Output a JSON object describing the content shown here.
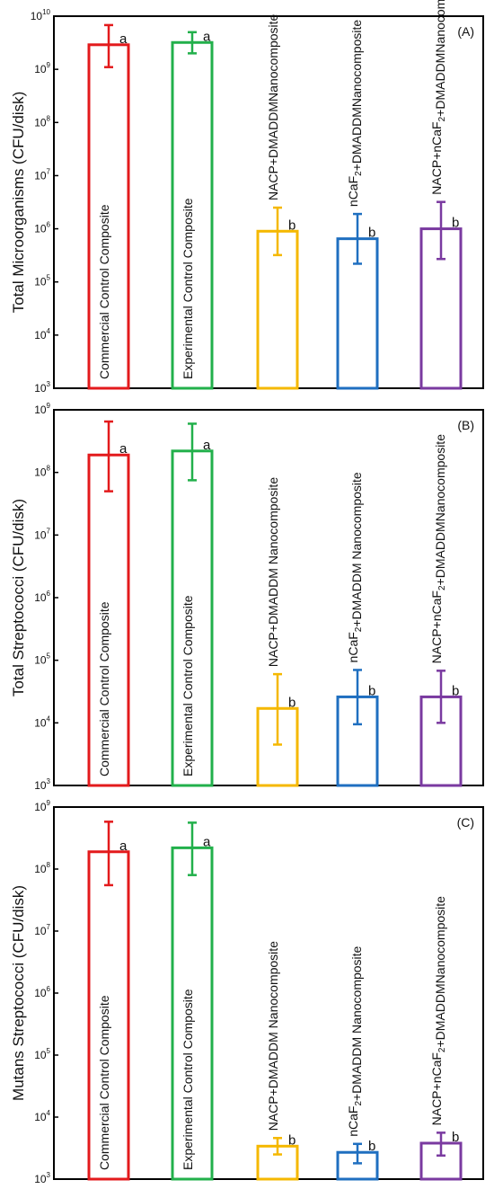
{
  "chart_data": [
    {
      "type": "bar",
      "panel_label": "(A)",
      "ylabel": "Total Microorganisms (CFU/disk)",
      "yscale": "log",
      "ylim": [
        1000,
        10000000000
      ],
      "yticks": [
        {
          "base": "10",
          "exp": "3"
        },
        {
          "base": "10",
          "exp": "4"
        },
        {
          "base": "10",
          "exp": "5"
        },
        {
          "base": "10",
          "exp": "6"
        },
        {
          "base": "10",
          "exp": "7"
        },
        {
          "base": "10",
          "exp": "8"
        },
        {
          "base": "10",
          "exp": "9"
        },
        {
          "base": "10",
          "exp": "10"
        }
      ],
      "bars": [
        {
          "lines": [
            [
              {
                "t": "Commercial Control Composite"
              }
            ]
          ],
          "value": 2900000000,
          "err_low": 1100000000,
          "err_high": 6800000000,
          "group": "a",
          "color": "#e31a1c",
          "label_inside": true
        },
        {
          "lines": [
            [
              {
                "t": "Experimental Control Composite"
              }
            ]
          ],
          "value": 3200000000,
          "err_low": 2000000000,
          "err_high": 5000000000,
          "group": "a",
          "color": "#22b04b",
          "label_inside": true
        },
        {
          "lines": [
            [
              {
                "t": "NACP+DMADDM"
              }
            ],
            [
              {
                "t": "Nanocomposite"
              }
            ]
          ],
          "value": 900000,
          "err_low": 320000,
          "err_high": 2500000,
          "group": "b",
          "color": "#f5b800",
          "label_inside": false
        },
        {
          "lines": [
            [
              {
                "t": "nCaF"
              },
              {
                "t": "2",
                "sub": true
              },
              {
                "t": "+DMADDM"
              }
            ],
            [
              {
                "t": "Nanocomposite"
              }
            ]
          ],
          "value": 650000,
          "err_low": 220000,
          "err_high": 1900000,
          "group": "b",
          "color": "#1f6fc0",
          "label_inside": false
        },
        {
          "lines": [
            [
              {
                "t": "NACP+nCaF"
              },
              {
                "t": "2",
                "sub": true
              },
              {
                "t": "+DMADDM"
              }
            ],
            [
              {
                "t": "Nanocomposite"
              }
            ]
          ],
          "value": 1000000,
          "err_low": 270000,
          "err_high": 3200000,
          "group": "b",
          "color": "#7a3aa0",
          "label_inside": false
        }
      ]
    },
    {
      "type": "bar",
      "panel_label": "(B)",
      "ylabel": "Total Streptococci (CFU/disk)",
      "yscale": "log",
      "ylim": [
        1000,
        1000000000
      ],
      "yticks": [
        {
          "base": "10",
          "exp": "3"
        },
        {
          "base": "10",
          "exp": "4"
        },
        {
          "base": "10",
          "exp": "5"
        },
        {
          "base": "10",
          "exp": "6"
        },
        {
          "base": "10",
          "exp": "7"
        },
        {
          "base": "10",
          "exp": "8"
        },
        {
          "base": "10",
          "exp": "9"
        }
      ],
      "bars": [
        {
          "lines": [
            [
              {
                "t": "Commercial Control Composite"
              }
            ]
          ],
          "value": 190000000,
          "err_low": 50000000,
          "err_high": 650000000,
          "group": "a",
          "color": "#e31a1c",
          "label_inside": true
        },
        {
          "lines": [
            [
              {
                "t": "Experimental Control Composite"
              }
            ]
          ],
          "value": 220000000,
          "err_low": 75000000,
          "err_high": 600000000,
          "group": "a",
          "color": "#22b04b",
          "label_inside": true
        },
        {
          "lines": [
            [
              {
                "t": "NACP+DMADDM Nanocomposite"
              }
            ]
          ],
          "value": 17000,
          "err_low": 4500,
          "err_high": 60000,
          "group": "b",
          "color": "#f5b800",
          "label_inside": false
        },
        {
          "lines": [
            [
              {
                "t": "nCaF"
              },
              {
                "t": "2",
                "sub": true
              },
              {
                "t": "+DMADDM Nanocomposite"
              }
            ]
          ],
          "value": 26000,
          "err_low": 9500,
          "err_high": 70000,
          "group": "b",
          "color": "#1f6fc0",
          "label_inside": false
        },
        {
          "lines": [
            [
              {
                "t": "NACP+nCaF"
              },
              {
                "t": "2",
                "sub": true
              },
              {
                "t": "+DMADDM"
              }
            ],
            [
              {
                "t": "Nanocomposite"
              }
            ]
          ],
          "value": 26000,
          "err_low": 10000,
          "err_high": 68000,
          "group": "b",
          "color": "#7a3aa0",
          "label_inside": false
        }
      ]
    },
    {
      "type": "bar",
      "panel_label": "(C)",
      "ylabel": "Mutans Streptococci (CFU/disk)",
      "yscale": "log",
      "ylim": [
        1000,
        1000000000
      ],
      "yticks": [
        {
          "base": "10",
          "exp": "3"
        },
        {
          "base": "10",
          "exp": "4"
        },
        {
          "base": "10",
          "exp": "5"
        },
        {
          "base": "10",
          "exp": "6"
        },
        {
          "base": "10",
          "exp": "7"
        },
        {
          "base": "10",
          "exp": "8"
        },
        {
          "base": "10",
          "exp": "9"
        }
      ],
      "bars": [
        {
          "lines": [
            [
              {
                "t": "Commercial Control Composite"
              }
            ]
          ],
          "value": 190000000,
          "err_low": 55000000,
          "err_high": 580000000,
          "group": "a",
          "color": "#e31a1c",
          "label_inside": true
        },
        {
          "lines": [
            [
              {
                "t": "Experimental Control Composite"
              }
            ]
          ],
          "value": 220000000,
          "err_low": 80000000,
          "err_high": 560000000,
          "group": "a",
          "color": "#22b04b",
          "label_inside": true
        },
        {
          "lines": [
            [
              {
                "t": "NACP+DMADDM Nanocomposite"
              }
            ]
          ],
          "value": 3400,
          "err_low": 2500,
          "err_high": 4600,
          "group": "b",
          "color": "#f5b800",
          "label_inside": false
        },
        {
          "lines": [
            [
              {
                "t": "nCaF"
              },
              {
                "t": "2",
                "sub": true
              },
              {
                "t": "+DMADDM Nanocomposite"
              }
            ]
          ],
          "value": 2700,
          "err_low": 1800,
          "err_high": 3700,
          "group": "b",
          "color": "#1f6fc0",
          "label_inside": false
        },
        {
          "lines": [
            [
              {
                "t": "NACP+nCaF"
              },
              {
                "t": "2",
                "sub": true
              },
              {
                "t": "+DMADDM"
              }
            ],
            [
              {
                "t": "Nanocomposite"
              }
            ]
          ],
          "value": 3800,
          "err_low": 2400,
          "err_high": 5600,
          "group": "b",
          "color": "#7a3aa0",
          "label_inside": false
        }
      ]
    }
  ]
}
